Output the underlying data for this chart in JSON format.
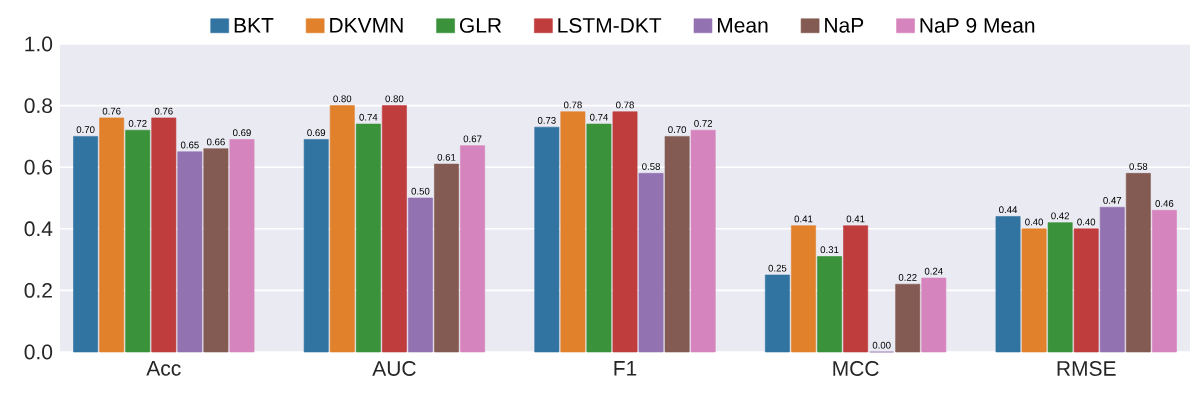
{
  "chart_data": {
    "type": "bar",
    "categories": [
      "Acc",
      "AUC",
      "F1",
      "MCC",
      "RMSE"
    ],
    "series": [
      {
        "name": "BKT",
        "color": "#3274a1",
        "values": [
          0.7,
          0.69,
          0.73,
          0.25,
          0.44
        ],
        "value_labels": [
          "0.70",
          "0.69",
          "0.73",
          "0.25",
          "0.44"
        ]
      },
      {
        "name": "DKVMN",
        "color": "#e1812c",
        "values": [
          0.76,
          0.8,
          0.78,
          0.41,
          0.4
        ],
        "value_labels": [
          "0.76",
          "0.80",
          "0.78",
          "0.41",
          "0.40"
        ]
      },
      {
        "name": "GLR",
        "color": "#3a923a",
        "values": [
          0.72,
          0.74,
          0.74,
          0.31,
          0.42
        ],
        "value_labels": [
          "0.72",
          "0.74",
          "0.74",
          "0.31",
          "0.42"
        ]
      },
      {
        "name": "LSTM-DKT",
        "color": "#c03d3e",
        "values": [
          0.76,
          0.8,
          0.78,
          0.41,
          0.4
        ],
        "value_labels": [
          "0.76",
          "0.80",
          "0.78",
          "0.41",
          "0.40"
        ]
      },
      {
        "name": "Mean",
        "color": "#9372b2",
        "values": [
          0.65,
          0.5,
          0.58,
          0.0,
          0.47
        ],
        "value_labels": [
          "0.65",
          "0.50",
          "0.58",
          "0.00",
          "0.47"
        ]
      },
      {
        "name": "NaP",
        "color": "#845b53",
        "values": [
          0.66,
          0.61,
          0.7,
          0.22,
          0.58
        ],
        "value_labels": [
          "0.66",
          "0.61",
          "0.70",
          "0.22",
          "0.58"
        ]
      },
      {
        "name": "NaP 9 Mean",
        "color": "#d684bd",
        "values": [
          0.69,
          0.67,
          0.72,
          0.24,
          0.46
        ],
        "value_labels": [
          "0.69",
          "0.67",
          "0.72",
          "0.24",
          "0.46"
        ]
      }
    ],
    "ylim": [
      0,
      1.0
    ],
    "yticks": [
      {
        "value": 0,
        "label": "0.0"
      },
      {
        "value": 0.2,
        "label": "0.2"
      },
      {
        "value": 0.4,
        "label": "0.4"
      },
      {
        "value": 0.6,
        "label": "0.6"
      },
      {
        "value": 0.8,
        "label": "0.8"
      },
      {
        "value": 1.0,
        "label": "1.0"
      }
    ],
    "grid": "y",
    "legend": "top"
  }
}
